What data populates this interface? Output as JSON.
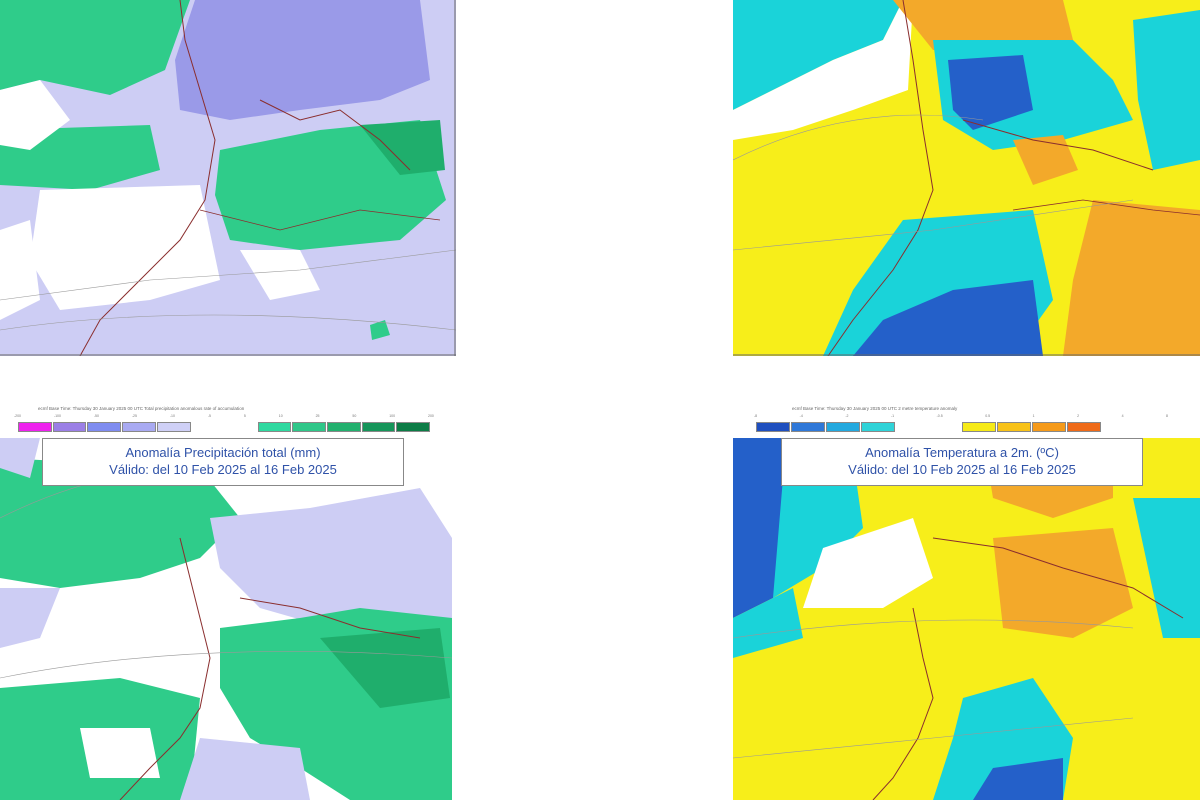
{
  "panels": {
    "precip_top": {},
    "temp_top": {},
    "precip_bottom": {
      "caption": "ecmf Base Time: Thursday 30 January 2025 00 UTC Total precipitation anomalous rate of accumulation",
      "title_line1": "Anomalía Precipitación total (mm)",
      "title_line2": "Válido: del 10 Feb 2025 al 16 Feb 2025",
      "legend_colors": [
        "#ee22ee",
        "#9b7fe6",
        "#7f8cf0",
        "#a9aaf2",
        "#cfd0f6",
        "#2fd9a0",
        "#2fc789",
        "#22b06e",
        "#16955a",
        "#0c7c46"
      ],
      "ticks": [
        "-200",
        "-100",
        "-50",
        "-25",
        "-10",
        "-5",
        "5",
        "10",
        "25",
        "50",
        "100",
        "200"
      ]
    },
    "temp_bottom": {
      "caption": "ecmf Base Time: Thursday 30 January 2025 00 UTC 2 metre temperature anomaly",
      "title_line1": "Anomalía Temperatura a 2m. (ºC)",
      "title_line2": "Válido: del 10 Feb 2025 al 16 Feb 2025",
      "legend_colors": [
        "#1f4fbf",
        "#2f78d8",
        "#23a9df",
        "#2fd3d8",
        "#f6ea17",
        "#f8c218",
        "#f59a1a",
        "#ef6a18"
      ],
      "ticks": [
        "-8",
        "-4",
        "-2",
        "-1",
        "-0.5",
        "0.5",
        "1",
        "2",
        "4",
        "8"
      ]
    }
  },
  "colors": {
    "precip_base": "#cdcdf4",
    "precip_wet": "#c2c2f2",
    "precip_purple": "#9a9ae8",
    "precip_green": "#2fcc8a",
    "precip_green_dark": "#1fae6c",
    "temp_yellow": "#f7ee1a",
    "temp_cyan": "#1ad3d9",
    "temp_blue": "#2460c9",
    "temp_orange": "#f3a92a",
    "border": "#8a2e2e"
  }
}
